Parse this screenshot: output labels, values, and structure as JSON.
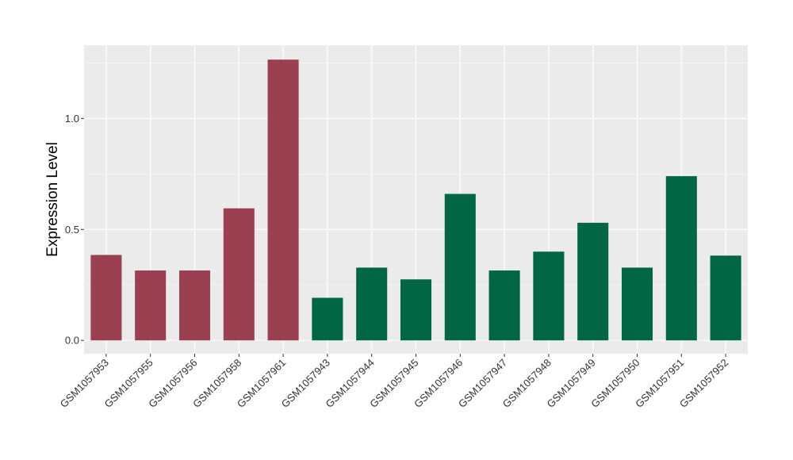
{
  "chart_data": {
    "type": "bar",
    "title": "",
    "xlabel": "",
    "ylabel": "Expression Level",
    "ylim": [
      -0.06,
      1.33
    ],
    "yticks": [
      0.0,
      0.5,
      1.0
    ],
    "ytick_labels": [
      "0.0",
      "0.5",
      "1.0"
    ],
    "grid": true,
    "legend": "none",
    "categories": [
      "GSM1057953",
      "GSM1057955",
      "GSM1057956",
      "GSM1057958",
      "GSM1057961",
      "GSM1057943",
      "GSM1057944",
      "GSM1057945",
      "GSM1057946",
      "GSM1057947",
      "GSM1057948",
      "GSM1057949",
      "GSM1057950",
      "GSM1057951",
      "GSM1057952"
    ],
    "values": [
      0.385,
      0.315,
      0.315,
      0.595,
      1.265,
      0.192,
      0.328,
      0.275,
      0.66,
      0.315,
      0.4,
      0.53,
      0.328,
      0.74,
      0.382
    ],
    "bar_colors": [
      "#9a4050",
      "#9a4050",
      "#9a4050",
      "#9a4050",
      "#9a4050",
      "#006644",
      "#006644",
      "#006644",
      "#006644",
      "#006644",
      "#006644",
      "#006644",
      "#006644",
      "#006644",
      "#006644"
    ]
  },
  "colors": {
    "panel_background": "#ebebeb",
    "grid_major": "#ffffff",
    "tick_mark": "#333333"
  }
}
